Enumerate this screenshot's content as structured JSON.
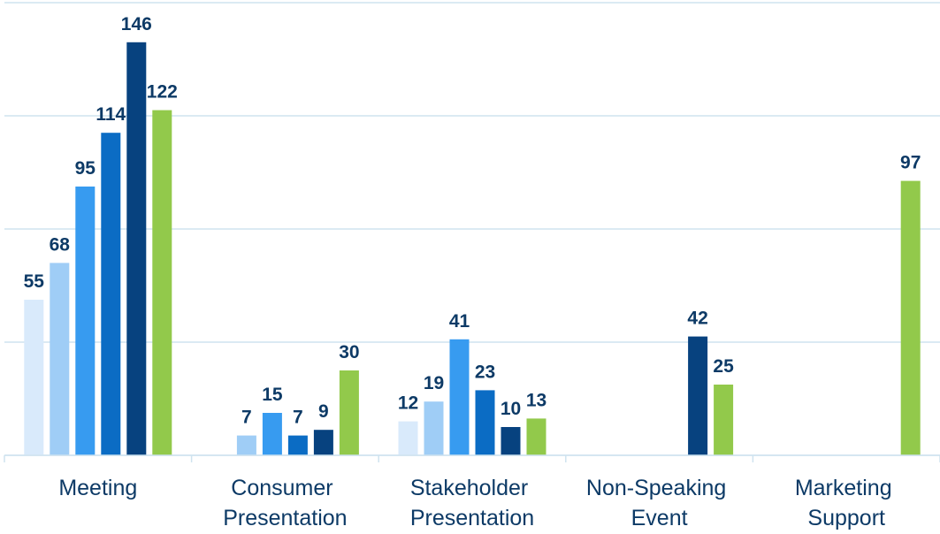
{
  "chart_data": {
    "type": "bar",
    "categories": [
      "Meeting",
      "Consumer Presentation",
      "Stakeholder Presentation",
      "Non-Speaking Event",
      "Marketing Support"
    ],
    "series": [
      {
        "color": "#d9eafb",
        "values": [
          55,
          null,
          12,
          null,
          null
        ]
      },
      {
        "color": "#9fcdf6",
        "values": [
          68,
          7,
          19,
          null,
          null
        ]
      },
      {
        "color": "#379bf0",
        "values": [
          95,
          15,
          41,
          null,
          null
        ]
      },
      {
        "color": "#0b6cc4",
        "values": [
          114,
          7,
          23,
          null,
          null
        ]
      },
      {
        "color": "#07427f",
        "values": [
          146,
          9,
          10,
          42,
          null
        ]
      },
      {
        "color": "#92c94b",
        "values": [
          122,
          30,
          13,
          25,
          97
        ]
      }
    ],
    "ylim": [
      0,
      160
    ],
    "yticks": [
      0,
      40,
      80,
      120,
      160
    ],
    "grid": true
  }
}
